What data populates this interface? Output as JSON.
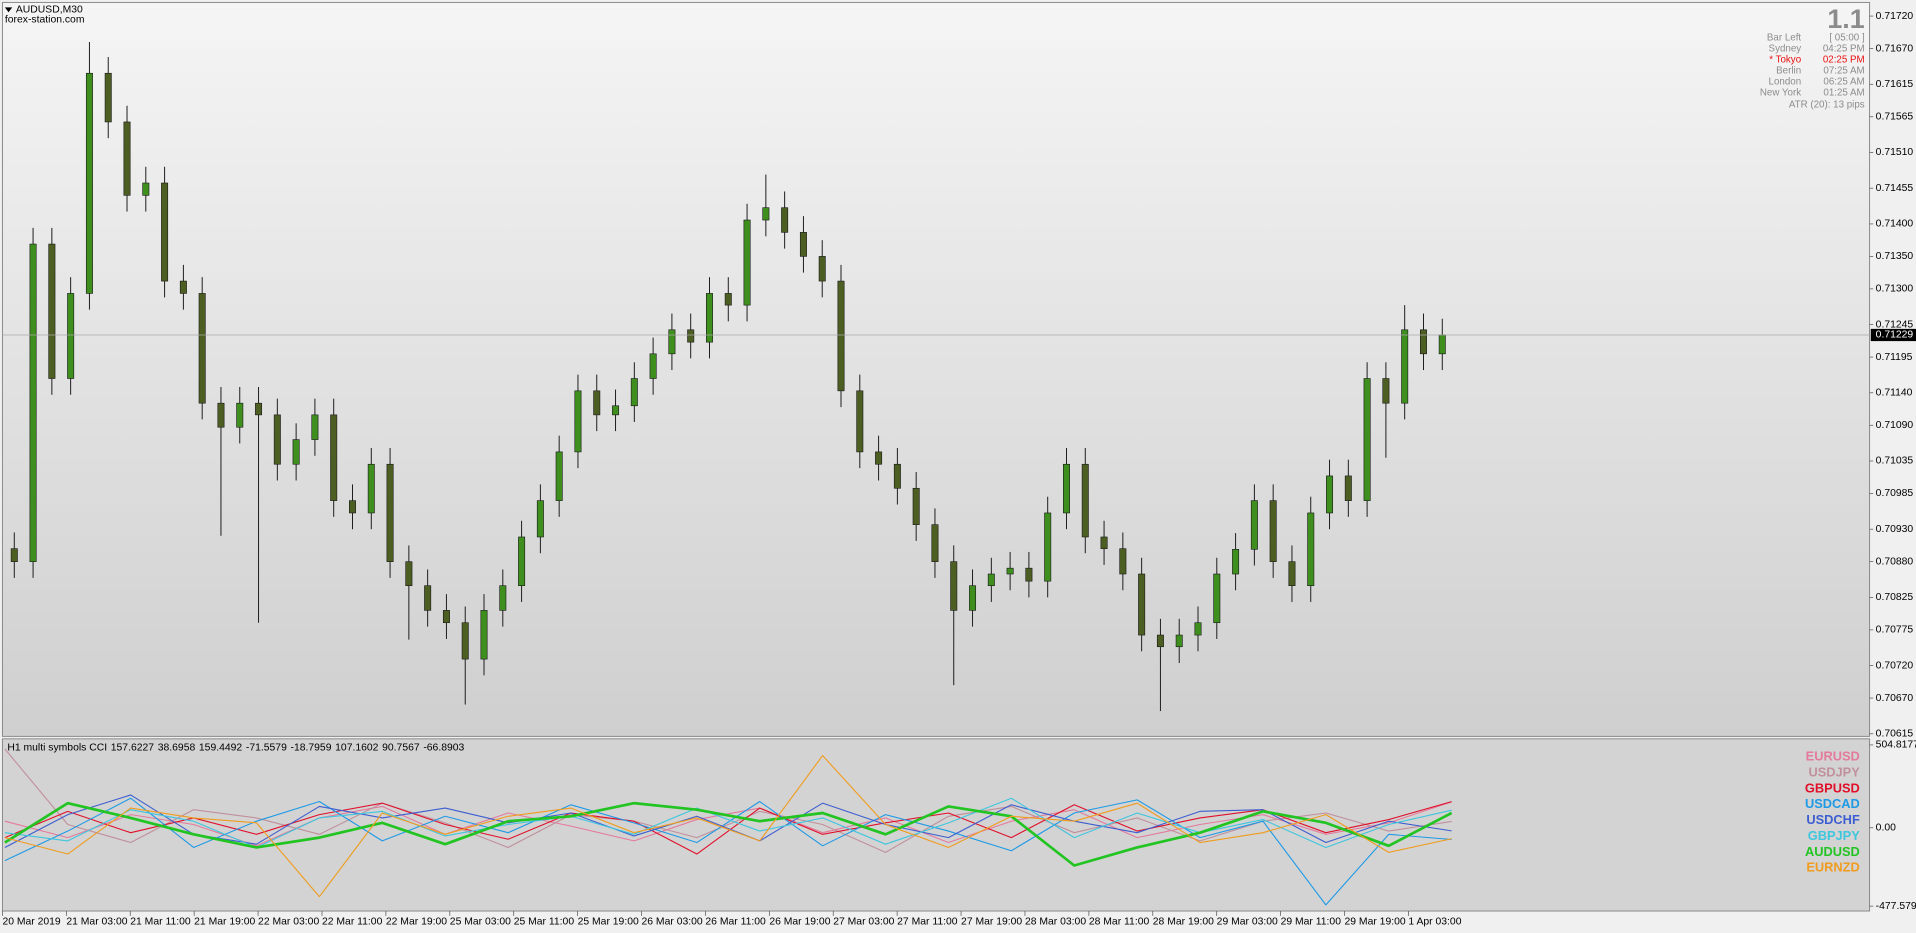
{
  "chart_data": [
    {
      "type": "candlestick",
      "title": "AUDUSD,M30",
      "subtitle": "forex-station.com",
      "up_color": "#3f8f1f",
      "down_color": "#4d5e22",
      "open": [
        0.709,
        0.7088,
        0.71369,
        0.71162,
        0.71293,
        0.71632,
        0.71557,
        0.71444,
        0.71463,
        0.71312,
        0.71293,
        0.71124,
        0.71087,
        0.71124,
        0.71106,
        0.7103,
        0.71068,
        0.71106,
        0.70974,
        0.70955,
        0.7103,
        0.7088,
        0.70843,
        0.70805,
        0.70786,
        0.7073,
        0.70805,
        0.70843,
        0.70918,
        0.70974,
        0.71049,
        0.71143,
        0.71106,
        0.7112,
        0.71162,
        0.712,
        0.71237,
        0.71218,
        0.71293,
        0.71275,
        0.71406,
        0.71425,
        0.71387,
        0.7135,
        0.71312,
        0.71143,
        0.71049,
        0.7103,
        0.70993,
        0.70937,
        0.7088,
        0.70805,
        0.70843,
        0.70861,
        0.7087,
        0.7085,
        0.70955,
        0.7103,
        0.70918,
        0.709,
        0.70861,
        0.70767,
        0.70749,
        0.70767,
        0.70786,
        0.70861,
        0.70899,
        0.70974,
        0.7088,
        0.70843,
        0.70955,
        0.71012,
        0.70974,
        0.71162,
        0.71124,
        0.71237,
        0.712
      ],
      "high": [
        0.70925,
        0.71394,
        0.71394,
        0.71318,
        0.7168,
        0.71657,
        0.71582,
        0.71488,
        0.71488,
        0.71337,
        0.71318,
        0.71149,
        0.71149,
        0.71149,
        0.71131,
        0.71093,
        0.71131,
        0.71131,
        0.70999,
        0.71055,
        0.71055,
        0.70905,
        0.70868,
        0.7083,
        0.70811,
        0.7083,
        0.70868,
        0.70943,
        0.70999,
        0.71074,
        0.71168,
        0.71168,
        0.71145,
        0.71187,
        0.71225,
        0.71262,
        0.71262,
        0.71318,
        0.71318,
        0.71431,
        0.71476,
        0.7145,
        0.71412,
        0.71375,
        0.71337,
        0.71168,
        0.71074,
        0.71055,
        0.71018,
        0.70962,
        0.70905,
        0.70868,
        0.70886,
        0.70895,
        0.70895,
        0.7098,
        0.71055,
        0.71055,
        0.70943,
        0.70925,
        0.70886,
        0.70792,
        0.70792,
        0.70811,
        0.70886,
        0.70924,
        0.70999,
        0.70999,
        0.70905,
        0.7098,
        0.71037,
        0.71037,
        0.71187,
        0.71187,
        0.71275,
        0.71262,
        0.71254
      ],
      "low": [
        0.70855,
        0.70855,
        0.71137,
        0.71137,
        0.71268,
        0.71532,
        0.71419,
        0.71419,
        0.71287,
        0.71268,
        0.71099,
        0.7092,
        0.71062,
        0.70786,
        0.71005,
        0.71005,
        0.71043,
        0.70949,
        0.7093,
        0.7093,
        0.70855,
        0.7076,
        0.7078,
        0.70761,
        0.7066,
        0.70705,
        0.7078,
        0.70818,
        0.70893,
        0.70949,
        0.71024,
        0.71081,
        0.71081,
        0.71095,
        0.71137,
        0.71175,
        0.71193,
        0.71193,
        0.7125,
        0.7125,
        0.71381,
        0.71362,
        0.71325,
        0.71287,
        0.71118,
        0.71024,
        0.71005,
        0.70968,
        0.70912,
        0.70855,
        0.7069,
        0.7078,
        0.70818,
        0.70836,
        0.70825,
        0.70825,
        0.7093,
        0.70893,
        0.70875,
        0.70836,
        0.70742,
        0.7065,
        0.70724,
        0.70742,
        0.70761,
        0.70836,
        0.70874,
        0.70855,
        0.70818,
        0.70818,
        0.7093,
        0.70949,
        0.70949,
        0.7104,
        0.71099,
        0.71175,
        0.71175
      ],
      "close": [
        0.7088,
        0.71369,
        0.71162,
        0.71293,
        0.71632,
        0.71557,
        0.71444,
        0.71463,
        0.71312,
        0.71293,
        0.71124,
        0.71087,
        0.71124,
        0.71106,
        0.7103,
        0.71068,
        0.71106,
        0.70974,
        0.70955,
        0.7103,
        0.7088,
        0.70843,
        0.70805,
        0.70786,
        0.7073,
        0.70805,
        0.70843,
        0.70918,
        0.70974,
        0.71049,
        0.71143,
        0.71106,
        0.7112,
        0.71162,
        0.712,
        0.71237,
        0.71218,
        0.71293,
        0.71275,
        0.71406,
        0.71425,
        0.71387,
        0.7135,
        0.71312,
        0.71143,
        0.71049,
        0.7103,
        0.70993,
        0.70937,
        0.7088,
        0.70805,
        0.70843,
        0.70861,
        0.7087,
        0.7085,
        0.70955,
        0.7103,
        0.70918,
        0.709,
        0.70861,
        0.70767,
        0.70749,
        0.70767,
        0.70786,
        0.70861,
        0.70899,
        0.70974,
        0.7088,
        0.70843,
        0.70955,
        0.71012,
        0.70974,
        0.71162,
        0.71124,
        0.71237,
        0.712,
        0.71229
      ],
      "current_price": 0.71229,
      "ylim": [
        0.70611,
        0.71741
      ],
      "yticks": [
        {
          "value": 0.7172,
          "label": "0.71720"
        },
        {
          "value": 0.7167,
          "label": "0.71670"
        },
        {
          "value": 0.71615,
          "label": "0.71615"
        },
        {
          "value": 0.71565,
          "label": "0.71565"
        },
        {
          "value": 0.7151,
          "label": "0.71510"
        },
        {
          "value": 0.71455,
          "label": "0.71455"
        },
        {
          "value": 0.714,
          "label": "0.71400"
        },
        {
          "value": 0.7135,
          "label": "0.71350"
        },
        {
          "value": 0.713,
          "label": "0.71300"
        },
        {
          "value": 0.71245,
          "label": "0.71245"
        },
        {
          "value": 0.71195,
          "label": "0.71195"
        },
        {
          "value": 0.7114,
          "label": "0.71140"
        },
        {
          "value": 0.7109,
          "label": "0.71090"
        },
        {
          "value": 0.71035,
          "label": "0.71035"
        },
        {
          "value": 0.70985,
          "label": "0.70985"
        },
        {
          "value": 0.7093,
          "label": "0.70930"
        },
        {
          "value": 0.7088,
          "label": "0.70880"
        },
        {
          "value": 0.70825,
          "label": "0.70825"
        },
        {
          "value": 0.70775,
          "label": "0.70775"
        },
        {
          "value": 0.7072,
          "label": "0.70720"
        },
        {
          "value": 0.7067,
          "label": "0.70670"
        },
        {
          "value": 0.70615,
          "label": "0.70615"
        }
      ],
      "time_labels": [
        "20 Mar 2019",
        "21 Mar 03:00",
        "21 Mar 11:00",
        "21 Mar 19:00",
        "22 Mar 03:00",
        "22 Mar 11:00",
        "22 Mar 19:00",
        "25 Mar 03:00",
        "25 Mar 11:00",
        "25 Mar 19:00",
        "26 Mar 03:00",
        "26 Mar 11:00",
        "26 Mar 19:00",
        "27 Mar 03:00",
        "27 Mar 11:00",
        "27 Mar 19:00",
        "28 Mar 03:00",
        "28 Mar 11:00",
        "28 Mar 19:00",
        "29 Mar 03:00",
        "29 Mar 11:00",
        "29 Mar 19:00",
        "1 Apr 03:00"
      ]
    },
    {
      "type": "line",
      "title": "H1 multi symbols CCI",
      "ylim": [
        -477.5799,
        504.8177
      ],
      "yticks": [
        504.8177,
        {
          "value": 0,
          "label": "0.00"
        },
        -477.5799
      ],
      "series": [
        {
          "name": "EURUSD",
          "color": "#e47a9c",
          "values": [
            40,
            -60,
            80,
            20,
            -110,
            60,
            130,
            -40,
            90,
            10,
            -80,
            50,
            120,
            -30,
            60,
            -90,
            40,
            110,
            -60,
            20,
            80,
            -40,
            30,
            157.6227
          ]
        },
        {
          "name": "USDJPY",
          "color": "#c0909c",
          "values": [
            480,
            20,
            -90,
            110,
            60,
            -40,
            150,
            30,
            -120,
            80,
            40,
            -60,
            100,
            20,
            -150,
            70,
            130,
            -30,
            60,
            -80,
            40,
            90,
            -20,
            38.6958
          ]
        },
        {
          "name": "GBPUSD",
          "color": "#e0102a",
          "values": [
            -60,
            100,
            -30,
            60,
            -40,
            80,
            150,
            20,
            -70,
            90,
            40,
            -160,
            120,
            -40,
            30,
            90,
            -60,
            140,
            -20,
            60,
            110,
            -30,
            50,
            159.4492
          ]
        },
        {
          "name": "USDCAD",
          "color": "#1e9ae6",
          "values": [
            -200,
            -20,
            180,
            -120,
            40,
            160,
            -80,
            70,
            -30,
            140,
            30,
            -90,
            160,
            -110,
            80,
            -20,
            -140,
            90,
            170,
            -60,
            40,
            -470,
            -40,
            -71.5579
          ]
        },
        {
          "name": "USDCHF",
          "color": "#3d5ed0",
          "values": [
            -120,
            80,
            200,
            -40,
            -100,
            130,
            60,
            120,
            30,
            90,
            -50,
            70,
            -80,
            150,
            20,
            -60,
            140,
            40,
            -30,
            100,
            110,
            -90,
            40,
            -18.7959
          ]
        },
        {
          "name": "GBPJPY",
          "color": "#3ec6de",
          "values": [
            -30,
            -80,
            110,
            40,
            -120,
            60,
            100,
            -50,
            20,
            70,
            -40,
            120,
            -20,
            60,
            -100,
            30,
            180,
            -60,
            90,
            -30,
            50,
            -120,
            20,
            107.1602
          ]
        },
        {
          "name": "AUDUSD",
          "color": "#22c422",
          "values": [
            -90,
            150,
            60,
            -40,
            -120,
            -60,
            30,
            -100,
            40,
            70,
            150,
            110,
            40,
            90,
            -40,
            130,
            70,
            -230,
            -120,
            -30,
            100,
            30,
            -110,
            90.7567
          ]
        },
        {
          "name": "EURNZD",
          "color": "#f09c1e",
          "values": [
            -60,
            -160,
            120,
            60,
            30,
            -420,
            90,
            -40,
            70,
            120,
            -30,
            60,
            -80,
            440,
            20,
            -120,
            70,
            40,
            150,
            -90,
            -30,
            80,
            -150,
            -66.8903
          ]
        }
      ]
    }
  ],
  "info_panel": {
    "spread": "1.1",
    "rows": [
      {
        "label": "Bar Left",
        "value": "[ 05:00 ]"
      },
      {
        "label": "Sydney",
        "value": "04:25 PM"
      },
      {
        "label": "* Tokyo",
        "value": "02:25 PM"
      },
      {
        "label": "Berlin",
        "value": "07:25 AM"
      },
      {
        "label": "London",
        "value": "06:25 AM"
      },
      {
        "label": "New York",
        "value": "01:25 AM"
      }
    ],
    "atr": "ATR (20): 13 pips"
  }
}
